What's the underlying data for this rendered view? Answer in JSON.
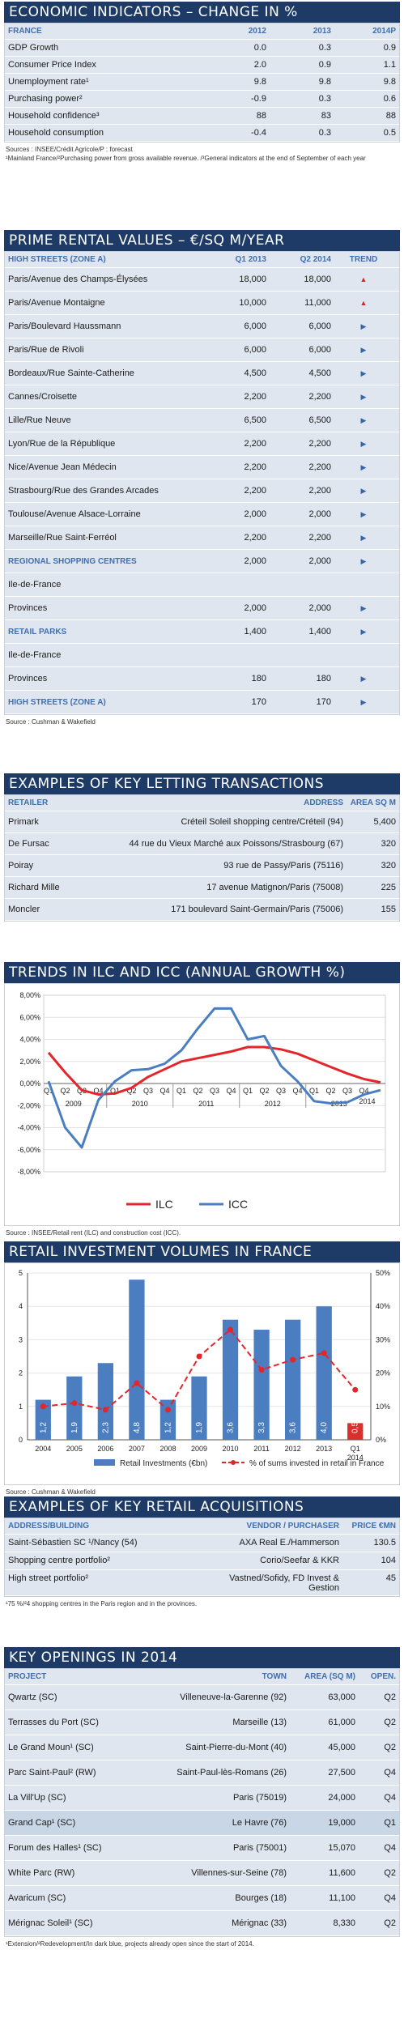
{
  "econ": {
    "title": "ECONOMIC INDICATORS – CHANGE IN %",
    "headers": [
      "FRANCE",
      "2012",
      "2013",
      "2014P"
    ],
    "rows": [
      [
        "GDP Growth",
        "0.0",
        "0.3",
        "0.9"
      ],
      [
        "Consumer Price Index",
        "2.0",
        "0.9",
        "1.1"
      ],
      [
        "Unemployment rate¹",
        "9.8",
        "9.8",
        "9.8"
      ],
      [
        "Purchasing power²",
        "-0.9",
        "0.3",
        "0.6"
      ],
      [
        "Household confidence³",
        "88",
        "83",
        "88"
      ],
      [
        "Household consumption",
        "-0.4",
        "0.3",
        "0.5"
      ]
    ],
    "source1": "Sources : INSEE/Crédit Agricole/P : forecast",
    "source2": "¹Mainland France/²Purchasing power from gross available revenue. /³General indicators at the end of September of each year"
  },
  "rental": {
    "title": "PRIME RENTAL VALUES – €/SQ M/YEAR",
    "headers": [
      "HIGH STREETS (ZONE A)",
      "Q1 2013",
      "Q2 2014",
      "TREND"
    ],
    "rows": [
      {
        "name": "Paris/Avenue des Champs-Élysées",
        "a": "18,000",
        "b": "18,000",
        "trend": "up"
      },
      {
        "name": "Paris/Avenue Montaigne",
        "a": "10,000",
        "b": "11,000",
        "trend": "up"
      },
      {
        "name": "Paris/Boulevard Haussmann",
        "a": "6,000",
        "b": "6,000",
        "trend": "right"
      },
      {
        "name": "Paris/Rue de Rivoli",
        "a": "6,000",
        "b": "6,000",
        "trend": "right"
      },
      {
        "name": "Bordeaux/Rue Sainte-Catherine",
        "a": "4,500",
        "b": "4,500",
        "trend": "right"
      },
      {
        "name": "Cannes/Croisette",
        "a": "2,200",
        "b": "2,200",
        "trend": "right"
      },
      {
        "name": "Lille/Rue Neuve",
        "a": "6,500",
        "b": "6,500",
        "trend": "right"
      },
      {
        "name": "Lyon/Rue de la République",
        "a": "2,200",
        "b": "2,200",
        "trend": "right"
      },
      {
        "name": "Nice/Avenue Jean Médecin",
        "a": "2,200",
        "b": "2,200",
        "trend": "right"
      },
      {
        "name": "Strasbourg/Rue des Grandes Arcades",
        "a": "2,200",
        "b": "2,200",
        "trend": "right"
      },
      {
        "name": "Toulouse/Avenue Alsace-Lorraine",
        "a": "2,000",
        "b": "2,000",
        "trend": "right"
      },
      {
        "name": "Marseille/Rue Saint-Ferréol",
        "a": "2,200",
        "b": "2,200",
        "trend": "right"
      },
      {
        "name": "REGIONAL SHOPPING CENTRES",
        "a": "2,000",
        "b": "2,000",
        "trend": "right",
        "sub": true
      },
      {
        "name": "Ile-de-France",
        "a": "",
        "b": "",
        "trend": ""
      },
      {
        "name": "Provinces",
        "a": "2,000",
        "b": "2,000",
        "trend": "right"
      },
      {
        "name": "RETAIL PARKS",
        "a": "1,400",
        "b": "1,400",
        "trend": "right",
        "sub": true
      },
      {
        "name": "Ile-de-France",
        "a": "",
        "b": "",
        "trend": ""
      },
      {
        "name": "Provinces",
        "a": "180",
        "b": "180",
        "trend": "right"
      },
      {
        "name": "HIGH STREETS (ZONE A)",
        "a": "170",
        "b": "170",
        "trend": "right",
        "sub": true
      }
    ],
    "source": "Source : Cushman & Wakefield"
  },
  "letting": {
    "title": "EXAMPLES OF KEY LETTING TRANSACTIONS",
    "headers": [
      "RETAILER",
      "ADDRESS",
      "AREA SQ M"
    ],
    "rows": [
      [
        "Primark",
        "Créteil Soleil shopping centre/Créteil (94)",
        "5,400"
      ],
      [
        "De Fursac",
        "44 rue du Vieux Marché aux Poissons/Strasbourg (67)",
        "320"
      ],
      [
        "Poiray",
        "93 rue de Passy/Paris (75116)",
        "320"
      ],
      [
        "Richard Mille",
        "17 avenue Matignon/Paris (75008)",
        "225"
      ],
      [
        "Moncler",
        "171 boulevard Saint-Germain/Paris (75006)",
        "155"
      ]
    ]
  },
  "ilc": {
    "title": "TRENDS IN ILC AND ICC (ANNUAL GROWTH %)",
    "source": "Source : INSEE/Retail rent (ILC) and construction cost (ICC).",
    "chart_data": {
      "type": "line",
      "x": [
        "Q1 2009",
        "Q2 2009",
        "Q3 2009",
        "Q4 2009",
        "Q1 2010",
        "Q2 2010",
        "Q3 2010",
        "Q4 2010",
        "Q1 2011",
        "Q2 2011",
        "Q3 2011",
        "Q4 2011",
        "Q1 2012",
        "Q2 2012",
        "Q3 2012",
        "Q4 2012",
        "Q1 2013",
        "Q2 2013",
        "Q3 2013",
        "Q4 2013",
        "Q1 2014"
      ],
      "quarter_labels": [
        "Q1",
        "Q2",
        "Q3",
        "Q4",
        "Q1",
        "Q2",
        "Q3",
        "Q4",
        "Q1",
        "Q2",
        "Q3",
        "Q4",
        "Q1",
        "Q2",
        "Q3",
        "Q4",
        "Q1",
        "Q2",
        "Q3",
        "Q4"
      ],
      "year_labels": [
        "2009",
        "2010",
        "2011",
        "2012",
        "2013",
        "2014"
      ],
      "series": [
        {
          "name": "ILC",
          "color": "#e3262b",
          "values": [
            2.8,
            1.0,
            -0.6,
            -1.0,
            -0.9,
            -0.4,
            0.6,
            1.3,
            2.0,
            2.3,
            2.6,
            2.9,
            3.3,
            3.3,
            3.1,
            2.7,
            2.1,
            1.5,
            0.9,
            0.4,
            0.1
          ]
        },
        {
          "name": "ICC",
          "color": "#4a7ec0",
          "values": [
            0.2,
            -4.0,
            -5.8,
            -1.5,
            0.2,
            1.2,
            1.3,
            1.8,
            3.0,
            5.0,
            6.8,
            6.8,
            4.0,
            4.3,
            1.6,
            0.2,
            -1.6,
            -1.8,
            -1.7,
            -1.0,
            -0.6
          ]
        }
      ],
      "ylim": [
        -8,
        8
      ],
      "y_ticks": [
        "8,00%",
        "6,00%",
        "4,00%",
        "2,00%",
        "0,00%",
        "-2,00%",
        "-4,00%",
        "-6,00%",
        "-8,00%"
      ],
      "legend": "bottom"
    }
  },
  "invest": {
    "title": "RETAIL INVESTMENT VOLUMES IN FRANCE",
    "source": "Source : Cushman & Wakefield",
    "chart_data": {
      "type": "bar",
      "categories": [
        "2004",
        "2005",
        "2006",
        "2007",
        "2008",
        "2009",
        "2010",
        "2011",
        "2012",
        "2013",
        "Q1 2014"
      ],
      "cat_labels": [
        "2004",
        "2005",
        "2006",
        "2007",
        "2008",
        "2009",
        "2010",
        "2011",
        "2012",
        "2013",
        "Q1"
      ],
      "cat_sub": "2014",
      "series": [
        {
          "name": "Retail Investments (€bn)",
          "color": "#4a7ec0",
          "values": [
            1.2,
            1.9,
            2.3,
            4.8,
            1.2,
            1.9,
            3.6,
            3.3,
            3.6,
            4.0,
            0.5
          ],
          "labels": [
            "1,2",
            "1,9",
            "2,3",
            "4,8",
            "1,2",
            "1,9",
            "3,6",
            "3,3",
            "3,6",
            "4,0",
            "0,5"
          ]
        },
        {
          "name": "% of sums invested in retail in France",
          "color": "#e3262b",
          "values": [
            10,
            11,
            9,
            17,
            9,
            25,
            33,
            21,
            24,
            26,
            15
          ]
        }
      ],
      "ylim_left": [
        0,
        5
      ],
      "ylim_right": [
        0,
        50
      ],
      "left_ticks": [
        "0",
        "1",
        "2",
        "3",
        "4",
        "5"
      ],
      "right_ticks": [
        "0%",
        "10%",
        "20%",
        "30%",
        "40%",
        "50%"
      ],
      "highlight_last": "#d9302c",
      "legend": "bottom"
    }
  },
  "acq": {
    "title": "EXAMPLES OF KEY RETAIL ACQUISITIONS",
    "headers": [
      "ADDRESS/BUILDING",
      "VENDOR / PURCHASER",
      "PRICE €MN"
    ],
    "rows": [
      [
        "Saint-Sébastien SC ¹/Nancy (54)",
        "AXA Real E./Hammerson",
        "130.5"
      ],
      [
        "Shopping centre portfolio²",
        "Corio/Seefar & KKR",
        "104"
      ],
      [
        "High street portfolio²",
        "Vastned/Sofidy, FD Invest & Gestion",
        "45"
      ]
    ],
    "source": "¹75 %/²4 shopping centres in the Paris region and in the provinces."
  },
  "openings": {
    "title": "KEY OPENINGS IN 2014",
    "headers": [
      "PROJECT",
      "TOWN",
      "AREA (SQ M)",
      "OPEN."
    ],
    "rows": [
      {
        "cells": [
          "Qwartz (SC)",
          "Villeneuve-la-Garenne (92)",
          "63,000",
          "Q2"
        ]
      },
      {
        "cells": [
          "Terrasses du Port (SC)",
          "Marseille (13)",
          "61,000",
          "Q2"
        ]
      },
      {
        "cells": [
          "Le Grand Moun¹ (SC)",
          "Saint-Pierre-du-Mont (40)",
          "45,000",
          "Q2"
        ]
      },
      {
        "cells": [
          "Parc Saint-Paul² (RW)",
          "Saint-Paul-lès-Romans (26)",
          "27,500",
          "Q4"
        ]
      },
      {
        "cells": [
          "La Vill'Up (SC)",
          "Paris (75019)",
          "24,000",
          "Q4"
        ]
      },
      {
        "cells": [
          "Grand Cap¹ (SC)",
          "Le Havre (76)",
          "19,000",
          "Q1"
        ],
        "hl": true
      },
      {
        "cells": [
          "Forum des Halles¹ (SC)",
          "Paris (75001)",
          "15,070",
          "Q4"
        ]
      },
      {
        "cells": [
          "White Parc (RW)",
          "Villennes-sur-Seine (78)",
          "11,600",
          "Q2"
        ]
      },
      {
        "cells": [
          "Avaricum (SC)",
          "Bourges (18)",
          "11,100",
          "Q4"
        ]
      },
      {
        "cells": [
          "Mérignac Soleil¹ (SC)",
          "Mérignac (33)",
          "8,330",
          "Q2"
        ]
      }
    ],
    "source": "¹Extension/²Redevelopment/In dark blue, projects already open since the start of 2014."
  }
}
